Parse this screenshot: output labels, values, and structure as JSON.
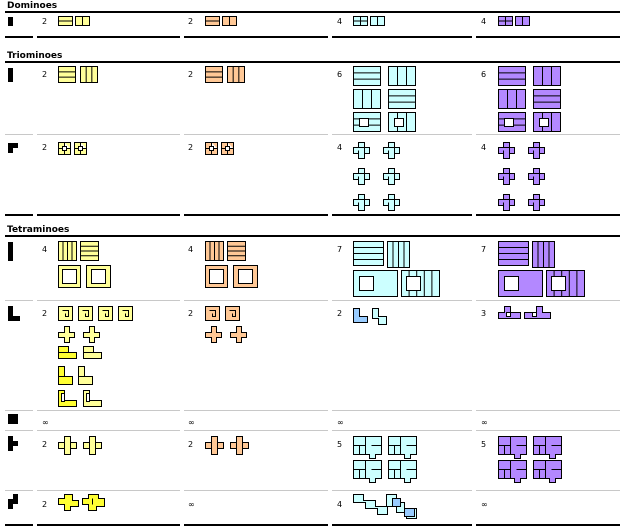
{
  "sections": [
    {
      "title": "Dominoes"
    },
    {
      "title": "Triominoes"
    },
    {
      "title": "Tetraminoes"
    }
  ],
  "colors": {
    "yellow": "#ffff99",
    "yellow_strong": "#ffff33",
    "orange": "#ffc896",
    "cyan": "#ccffff",
    "blue": "#99ccff",
    "purple": "#b388ff",
    "line": "#000000"
  },
  "rows": [
    {
      "shape": "domino",
      "counts": [
        "2",
        "2",
        "4",
        "4"
      ]
    },
    {
      "shape": "I-triomino",
      "counts": [
        "2",
        "2",
        "6",
        "6"
      ]
    },
    {
      "shape": "L-triomino",
      "counts": [
        "2",
        "2",
        "4",
        "4"
      ]
    },
    {
      "shape": "I-tetromino",
      "counts": [
        "4",
        "4",
        "7",
        "7"
      ]
    },
    {
      "shape": "L-tetromino",
      "counts": [
        "2",
        "2",
        "2",
        "3"
      ]
    },
    {
      "shape": "O-tetromino",
      "counts": [
        "∞",
        "∞",
        "∞",
        "∞"
      ]
    },
    {
      "shape": "T-tetromino",
      "counts": [
        "2",
        "2",
        "5",
        "5"
      ]
    },
    {
      "shape": "S-tetromino",
      "counts": [
        "2",
        "∞",
        "4",
        "∞"
      ]
    }
  ]
}
